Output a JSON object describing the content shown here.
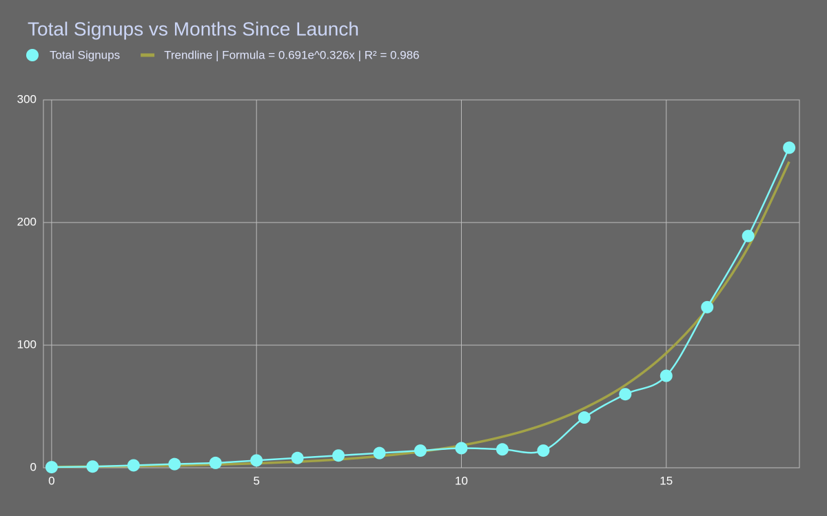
{
  "chart_data": {
    "type": "line",
    "title": "Total Signups vs Months Since Launch",
    "x": [
      0,
      1,
      2,
      3,
      4,
      5,
      6,
      7,
      8,
      9,
      10,
      11,
      12,
      13,
      14,
      15,
      16,
      17,
      18
    ],
    "series": [
      {
        "name": "Total Signups",
        "color": "#7ff7f7",
        "markers": true,
        "values": [
          0.5,
          1,
          2,
          3,
          4,
          6,
          8,
          10,
          12,
          14,
          16,
          15,
          14,
          41,
          60,
          75,
          131,
          189,
          261
        ]
      },
      {
        "name": "Trendline | Formula = 0.691e^0.326x | R² = 0.986",
        "color": "#a3a347",
        "markers": false,
        "values": [
          0.7,
          1,
          1.3,
          1.8,
          2.6,
          3.6,
          4.9,
          6.8,
          9.5,
          13.1,
          18.2,
          25.3,
          35,
          48.6,
          67.4,
          93.5,
          129.7,
          179.9,
          249.6
        ]
      }
    ],
    "xlim": [
      -0.2,
      18.25
    ],
    "xticks": [
      0,
      5,
      10,
      15
    ],
    "ylim": [
      0,
      300
    ],
    "yticks": [
      0,
      100,
      200,
      300
    ],
    "grid": true
  }
}
